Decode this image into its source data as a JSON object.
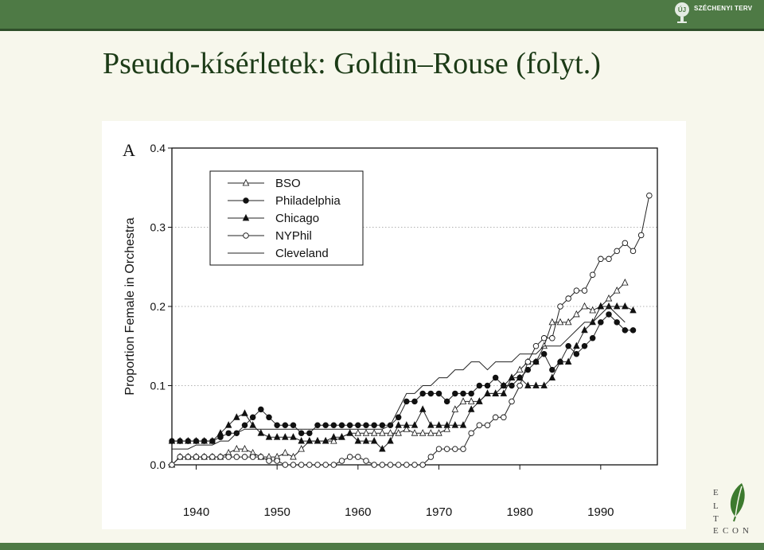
{
  "slide": {
    "title": "Pseudo-kísérletek: Goldin–Rouse (folyt.)",
    "top_logo_text": "SZÉCHENYI TERV",
    "bottom_logo_letters": [
      "E",
      "L",
      "T",
      "E",
      "C",
      "O",
      "N"
    ]
  },
  "colors": {
    "bar_green": "#4e7a45",
    "title_green": "#1c3b17",
    "background": "#f7f7ec"
  },
  "chart_data": {
    "type": "line",
    "panel_label": "A",
    "ylabel": "Proportion Female in Orchestra",
    "xlabel": "",
    "xlim": [
      1937,
      1997
    ],
    "ylim": [
      0,
      0.4
    ],
    "x_ticks": [
      "1940",
      "1950",
      "1960",
      "1970",
      "1980",
      "1990"
    ],
    "y_ticks": [
      "0.0",
      "0.1",
      "0.2",
      "0.3",
      "0.4"
    ],
    "grid": "dotted horizontal",
    "legend_position": "top-left",
    "series": [
      {
        "name": "BSO",
        "marker": "open-triangle",
        "x": [
          1937,
          1938,
          1939,
          1940,
          1941,
          1942,
          1943,
          1944,
          1945,
          1946,
          1947,
          1948,
          1949,
          1950,
          1951,
          1952,
          1953,
          1954,
          1955,
          1956,
          1957,
          1958,
          1959,
          1960,
          1961,
          1962,
          1963,
          1964,
          1965,
          1966,
          1967,
          1968,
          1969,
          1970,
          1971,
          1972,
          1973,
          1974,
          1975,
          1976,
          1977,
          1978,
          1979,
          1980,
          1981,
          1982,
          1983,
          1984,
          1985,
          1986,
          1987,
          1988,
          1989,
          1990,
          1991,
          1992,
          1993
        ],
        "y": [
          0,
          0.01,
          0.01,
          0.01,
          0.01,
          0.01,
          0.01,
          0.015,
          0.02,
          0.02,
          0.015,
          0.01,
          0.01,
          0.01,
          0.015,
          0.01,
          0.02,
          0.03,
          0.03,
          0.03,
          0.03,
          0.035,
          0.04,
          0.04,
          0.04,
          0.04,
          0.04,
          0.04,
          0.04,
          0.045,
          0.04,
          0.04,
          0.04,
          0.04,
          0.045,
          0.07,
          0.08,
          0.08,
          0.08,
          0.09,
          0.09,
          0.1,
          0.11,
          0.12,
          0.13,
          0.13,
          0.15,
          0.18,
          0.18,
          0.18,
          0.19,
          0.2,
          0.195,
          0.2,
          0.21,
          0.22,
          0.23
        ]
      },
      {
        "name": "Philadelphia",
        "marker": "filled-circle",
        "x": [
          1937,
          1938,
          1939,
          1940,
          1941,
          1942,
          1943,
          1944,
          1945,
          1946,
          1947,
          1948,
          1949,
          1950,
          1951,
          1952,
          1953,
          1954,
          1955,
          1956,
          1957,
          1958,
          1959,
          1960,
          1961,
          1962,
          1963,
          1964,
          1965,
          1966,
          1967,
          1968,
          1969,
          1970,
          1971,
          1972,
          1973,
          1974,
          1975,
          1976,
          1977,
          1978,
          1979,
          1980,
          1981,
          1982,
          1983,
          1984,
          1985,
          1986,
          1987,
          1988,
          1989,
          1990,
          1991,
          1992,
          1993,
          1994
        ],
        "y": [
          0.03,
          0.03,
          0.03,
          0.03,
          0.03,
          0.03,
          0.035,
          0.04,
          0.04,
          0.05,
          0.06,
          0.07,
          0.06,
          0.05,
          0.05,
          0.05,
          0.04,
          0.04,
          0.05,
          0.05,
          0.05,
          0.05,
          0.05,
          0.05,
          0.05,
          0.05,
          0.05,
          0.05,
          0.06,
          0.08,
          0.08,
          0.09,
          0.09,
          0.09,
          0.08,
          0.09,
          0.09,
          0.09,
          0.1,
          0.1,
          0.11,
          0.1,
          0.1,
          0.11,
          0.12,
          0.13,
          0.14,
          0.12,
          0.13,
          0.15,
          0.14,
          0.15,
          0.16,
          0.18,
          0.19,
          0.18,
          0.17,
          0.17
        ]
      },
      {
        "name": "Chicago",
        "marker": "filled-triangle",
        "x": [
          1937,
          1938,
          1939,
          1940,
          1941,
          1942,
          1943,
          1944,
          1945,
          1946,
          1947,
          1948,
          1949,
          1950,
          1951,
          1952,
          1953,
          1954,
          1955,
          1956,
          1957,
          1958,
          1959,
          1960,
          1961,
          1962,
          1963,
          1964,
          1965,
          1966,
          1967,
          1968,
          1969,
          1970,
          1971,
          1972,
          1973,
          1974,
          1975,
          1976,
          1977,
          1978,
          1979,
          1980,
          1981,
          1982,
          1983,
          1984,
          1985,
          1986,
          1987,
          1988,
          1989,
          1990,
          1991,
          1992,
          1993,
          1994
        ],
        "y": [
          0.03,
          0.03,
          0.03,
          0.03,
          0.03,
          0.03,
          0.04,
          0.05,
          0.06,
          0.065,
          0.05,
          0.04,
          0.035,
          0.035,
          0.035,
          0.035,
          0.03,
          0.03,
          0.03,
          0.03,
          0.035,
          0.035,
          0.04,
          0.03,
          0.03,
          0.03,
          0.02,
          0.03,
          0.05,
          0.05,
          0.05,
          0.07,
          0.05,
          0.05,
          0.05,
          0.05,
          0.05,
          0.07,
          0.08,
          0.09,
          0.09,
          0.09,
          0.11,
          0.11,
          0.1,
          0.1,
          0.1,
          0.11,
          0.13,
          0.13,
          0.15,
          0.17,
          0.18,
          0.2,
          0.2,
          0.2,
          0.2,
          0.195
        ]
      },
      {
        "name": "NYPhil",
        "marker": "open-circle",
        "x": [
          1937,
          1938,
          1939,
          1940,
          1941,
          1942,
          1943,
          1944,
          1945,
          1946,
          1947,
          1948,
          1949,
          1950,
          1951,
          1952,
          1953,
          1954,
          1955,
          1956,
          1957,
          1958,
          1959,
          1960,
          1961,
          1962,
          1963,
          1964,
          1965,
          1966,
          1967,
          1968,
          1969,
          1970,
          1971,
          1972,
          1973,
          1974,
          1975,
          1976,
          1977,
          1978,
          1979,
          1980,
          1981,
          1982,
          1983,
          1984,
          1985,
          1986,
          1987,
          1988,
          1989,
          1990,
          1991,
          1992,
          1993,
          1994,
          1995,
          1996
        ],
        "y": [
          0,
          0.01,
          0.01,
          0.01,
          0.01,
          0.01,
          0.01,
          0.01,
          0.01,
          0.01,
          0.01,
          0.01,
          0.005,
          0.005,
          0,
          0,
          0,
          0,
          0,
          0,
          0,
          0.005,
          0.01,
          0.01,
          0.005,
          0,
          0,
          0,
          0,
          0,
          0,
          0,
          0.01,
          0.02,
          0.02,
          0.02,
          0.02,
          0.04,
          0.05,
          0.05,
          0.06,
          0.06,
          0.08,
          0.1,
          0.13,
          0.15,
          0.16,
          0.16,
          0.2,
          0.21,
          0.22,
          0.22,
          0.24,
          0.26,
          0.26,
          0.27,
          0.28,
          0.27,
          0.29,
          0.34
        ]
      },
      {
        "name": "Cleveland",
        "marker": "none",
        "x": [
          1937,
          1938,
          1939,
          1940,
          1941,
          1942,
          1943,
          1944,
          1945,
          1946,
          1947,
          1948,
          1949,
          1950,
          1951,
          1952,
          1953,
          1954,
          1955,
          1956,
          1957,
          1958,
          1959,
          1960,
          1961,
          1962,
          1963,
          1964,
          1965,
          1966,
          1967,
          1968,
          1969,
          1970,
          1971,
          1972,
          1973,
          1974,
          1975,
          1976,
          1977,
          1978,
          1979,
          1980,
          1981,
          1982,
          1983,
          1984,
          1985,
          1986,
          1987,
          1988,
          1989,
          1990,
          1991,
          1992,
          1993
        ],
        "y": [
          0.02,
          0.02,
          0.02,
          0.025,
          0.025,
          0.025,
          0.03,
          0.03,
          0.04,
          0.045,
          0.045,
          0.045,
          0.045,
          0.045,
          0.045,
          0.045,
          0.045,
          0.045,
          0.045,
          0.045,
          0.045,
          0.045,
          0.045,
          0.045,
          0.045,
          0.045,
          0.045,
          0.05,
          0.07,
          0.09,
          0.09,
          0.1,
          0.1,
          0.11,
          0.11,
          0.12,
          0.12,
          0.13,
          0.13,
          0.12,
          0.13,
          0.13,
          0.13,
          0.14,
          0.14,
          0.14,
          0.15,
          0.15,
          0.15,
          0.16,
          0.17,
          0.18,
          0.18,
          0.19,
          0.2,
          0.19,
          0.18
        ]
      }
    ]
  }
}
